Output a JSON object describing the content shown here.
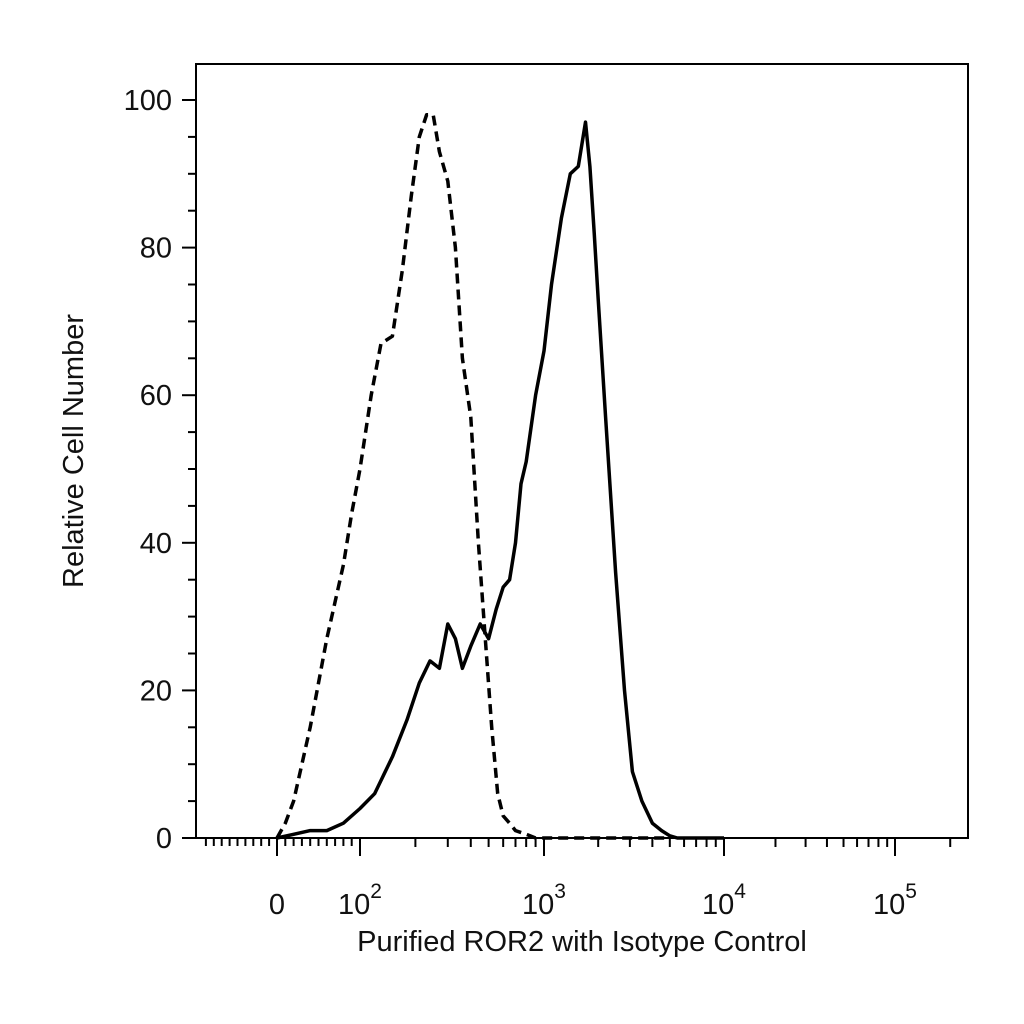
{
  "chart_data": {
    "type": "line",
    "title": "",
    "xlabel": "Purified ROR2 with Isotype Control",
    "ylabel": "Relative Cell Number",
    "x_scale": "biexponential",
    "xlim": [
      -100,
      250000
    ],
    "ylim": [
      0,
      100
    ],
    "y_ticks": [
      0,
      20,
      40,
      60,
      80,
      100
    ],
    "x_tick_labels": [
      {
        "value": 0,
        "base": "0",
        "exp": ""
      },
      {
        "value": 100,
        "base": "10",
        "exp": "2"
      },
      {
        "value": 1000,
        "base": "10",
        "exp": "3"
      },
      {
        "value": 10000,
        "base": "10",
        "exp": "4"
      },
      {
        "value": 100000,
        "base": "10",
        "exp": "5"
      }
    ],
    "grid": false,
    "series": [
      {
        "style": "dashed",
        "color": "#000000",
        "x": [
          0,
          10,
          20,
          30,
          40,
          50,
          60,
          70,
          80,
          90,
          100,
          115,
          130,
          150,
          170,
          190,
          210,
          230,
          250,
          270,
          300,
          330,
          360,
          400,
          440,
          480,
          520,
          560,
          600,
          650,
          700,
          800,
          900,
          1000,
          2000,
          5000
        ],
        "y": [
          0,
          2,
          5,
          10,
          15,
          21,
          27,
          32,
          37,
          44,
          50,
          60,
          67,
          68,
          77,
          87,
          95,
          98,
          98,
          93,
          89,
          80,
          65,
          57,
          40,
          27,
          15,
          6,
          3,
          2,
          1,
          0.5,
          0,
          0,
          0,
          0
        ]
      },
      {
        "style": "solid",
        "color": "#000000",
        "x": [
          0,
          20,
          40,
          60,
          80,
          100,
          120,
          150,
          180,
          210,
          240,
          270,
          300,
          330,
          360,
          400,
          450,
          500,
          550,
          600,
          650,
          700,
          750,
          800,
          900,
          1000,
          1100,
          1250,
          1400,
          1550,
          1700,
          1800,
          1900,
          2000,
          2200,
          2500,
          2800,
          3100,
          3500,
          4000,
          4500,
          5000,
          5500,
          6000,
          10000
        ],
        "y": [
          0,
          0.5,
          1,
          1,
          2,
          4,
          6,
          11,
          16,
          21,
          24,
          23,
          29,
          27,
          23,
          26,
          29,
          27,
          31,
          34,
          35,
          40,
          48,
          51,
          60,
          66,
          75,
          84,
          90,
          91,
          97,
          91,
          82,
          73,
          57,
          36,
          20,
          9,
          5,
          2,
          1,
          0.3,
          0,
          0,
          0
        ]
      }
    ]
  }
}
